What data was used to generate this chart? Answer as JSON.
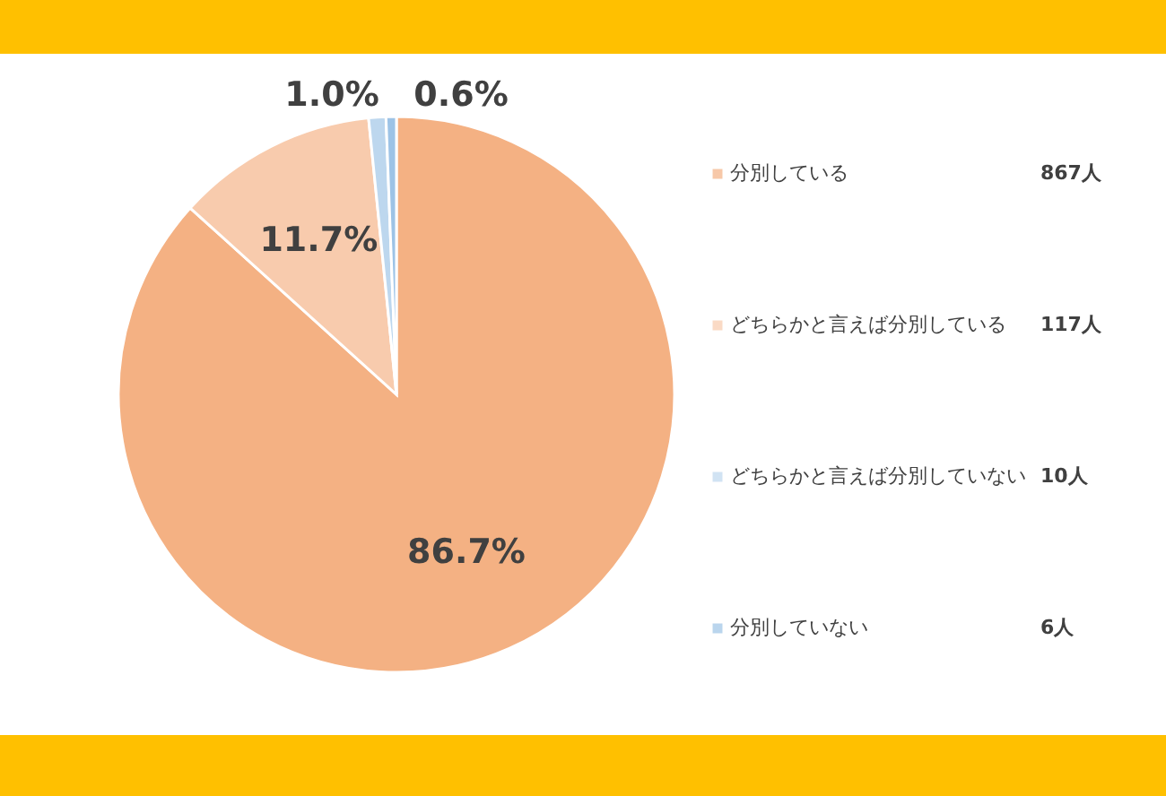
{
  "chart_data": {
    "type": "pie",
    "categories": [
      "分別している",
      "どちらかと言えば分別している",
      "どちらかと言えば分別していない",
      "分別していない"
    ],
    "values": [
      86.7,
      11.7,
      1.0,
      0.6
    ],
    "value_labels": [
      "86.7%",
      "11.7%",
      "1.0%",
      "0.6%"
    ],
    "colors": [
      "#f4b183",
      "#f8cbad",
      "#bdd7ee",
      "#9dc3e6"
    ],
    "annotations": [
      "867人",
      "117人",
      "10人",
      "6人"
    ],
    "legend": "right"
  }
}
